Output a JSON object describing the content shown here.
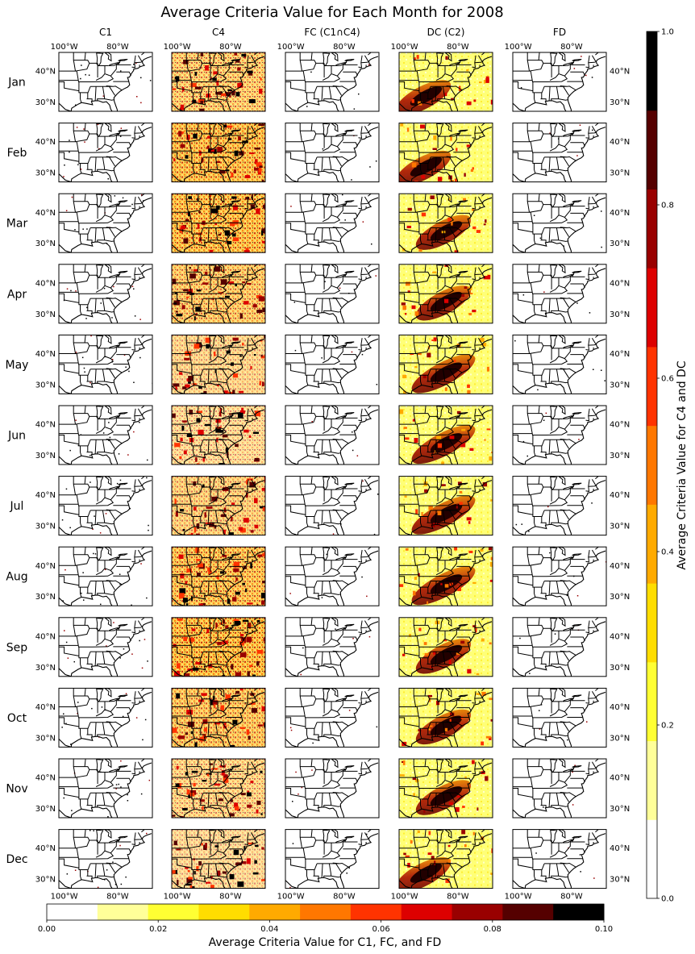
{
  "title": "Average Criteria Value for Each Month for 2008",
  "columns": [
    "C1",
    "C4",
    "FC (C1∩C4)",
    "DC (C2)",
    "FD"
  ],
  "months": [
    "Jan",
    "Feb",
    "Mar",
    "Apr",
    "May",
    "Jun",
    "Jul",
    "Aug",
    "Sep",
    "Oct",
    "Nov",
    "Dec"
  ],
  "top_lon_labels": [
    "100°W",
    "80°W"
  ],
  "bottom_lon_labels": [
    "100°W",
    "80°W"
  ],
  "lat_labels": [
    "40°N",
    "30°N"
  ],
  "cmap_colors": [
    "#ffffff",
    "#ffff99",
    "#ffff33",
    "#ffdd00",
    "#ffaa00",
    "#ff7700",
    "#ff3300",
    "#dd0000",
    "#990000",
    "#550000",
    "#000000"
  ],
  "colorbar_right": {
    "label": "Average Criteria Value for C4 and DC",
    "ticks": [
      "0.0",
      "0.2",
      "0.4",
      "0.6",
      "0.8",
      "1.0"
    ],
    "range": [
      0.0,
      1.0
    ]
  },
  "colorbar_bottom": {
    "label": "Average Criteria Value for C1, FC, and FD",
    "ticks": [
      "0.00",
      "0.02",
      "0.04",
      "0.06",
      "0.08",
      "0.10"
    ],
    "range": [
      0.0,
      0.1
    ]
  },
  "chart_data": {
    "type": "heatmap",
    "title": "Average Criteria Value for Each Month for 2008",
    "rows": [
      "Jan",
      "Feb",
      "Mar",
      "Apr",
      "May",
      "Jun",
      "Jul",
      "Aug",
      "Sep",
      "Oct",
      "Nov",
      "Dec"
    ],
    "columns": [
      "C1",
      "C4",
      "FC (C1∩C4)",
      "DC (C2)",
      "FD"
    ],
    "map_extent": {
      "lon": [
        -102,
        -67
      ],
      "lat": [
        27,
        46
      ]
    },
    "colorbars": [
      {
        "label": "Average Criteria Value for C4 and DC",
        "range": [
          0.0,
          1.0
        ],
        "levels": 11
      },
      {
        "label": "Average Criteria Value for C1, FC, and FD",
        "range": [
          0.0,
          0.1
        ],
        "levels": 11
      }
    ]
  }
}
